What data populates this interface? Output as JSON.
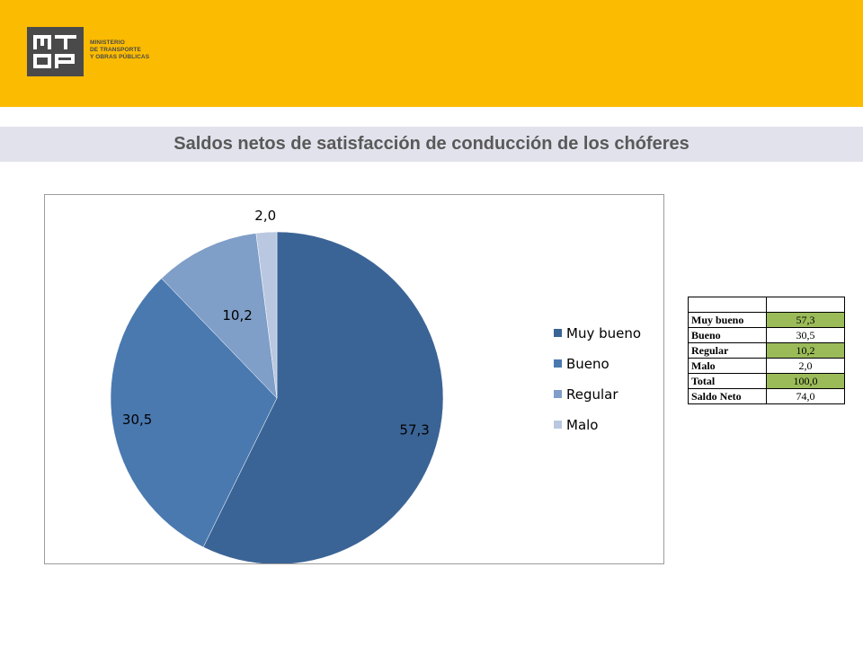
{
  "logo": {
    "mark": "MTOP",
    "lines": [
      "MINISTERIO",
      "DE TRANSPORTE",
      "Y OBRAS PÚBLICAS"
    ]
  },
  "title": "Saldos netos de satisfacción de  conducción de los chóferes",
  "chart_data": {
    "type": "pie",
    "categories": [
      "Muy bueno",
      "Bueno",
      "Regular",
      "Malo"
    ],
    "values": [
      57.3,
      30.5,
      10.2,
      2.0
    ],
    "labels": [
      "57,3",
      "30,5",
      "10,2",
      "2,0"
    ],
    "colors": [
      "#3b6496",
      "#4a79b0",
      "#7f9ec8",
      "#b9c8e0"
    ],
    "legend_position": "right"
  },
  "table": {
    "header": [
      "",
      ""
    ],
    "rows": [
      {
        "label": "Muy bueno",
        "value": "57,3",
        "highlight": true
      },
      {
        "label": "Bueno",
        "value": "30,5",
        "highlight": false
      },
      {
        "label": "Regular",
        "value": "10,2",
        "highlight": true
      },
      {
        "label": "Malo",
        "value": "2,0",
        "highlight": false
      },
      {
        "label": "Total",
        "value": "100,0",
        "highlight": true
      },
      {
        "label": "Saldo Neto",
        "value": "74,0",
        "highlight": false
      }
    ]
  }
}
